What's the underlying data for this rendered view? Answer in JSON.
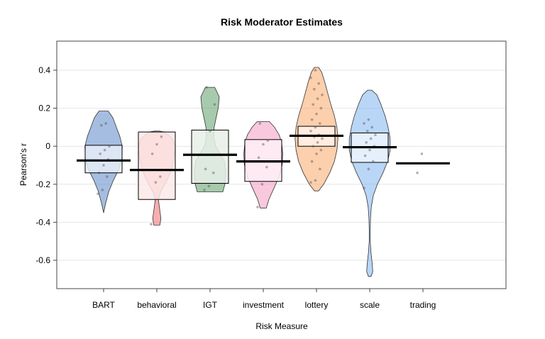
{
  "chart_data": {
    "type": "violin",
    "title": "Risk Moderator Estimates",
    "xlabel": "Risk Measure",
    "ylabel": "Pearson's r",
    "ylim": [
      -0.75,
      0.58
    ],
    "y_ticks": [
      0.4,
      0.2,
      0,
      -0.2,
      -0.4,
      -0.6
    ],
    "y_tick_labels": [
      "0.4",
      "0.2",
      "0",
      "-0.2",
      "-0.4",
      "-0.6"
    ],
    "grid": true,
    "categories": [
      "BART",
      "behavioral",
      "IGT",
      "investment",
      "lottery",
      "scale",
      "trading"
    ],
    "groups": [
      {
        "name": "BART",
        "color": "#5b86c8",
        "mean": -0.075,
        "box": [
          -0.14,
          0.005
        ],
        "min": -0.35,
        "max": 0.185,
        "profile": [
          [
            -0.35,
            0.0
          ],
          [
            -0.3,
            0.08
          ],
          [
            -0.24,
            0.2
          ],
          [
            -0.18,
            0.38
          ],
          [
            -0.12,
            0.6
          ],
          [
            -0.06,
            0.72
          ],
          [
            0.0,
            0.73
          ],
          [
            0.05,
            0.64
          ],
          [
            0.1,
            0.5
          ],
          [
            0.15,
            0.36
          ],
          [
            0.185,
            0.18
          ]
        ],
        "points": [
          -0.25,
          -0.23,
          -0.16,
          -0.14,
          -0.1,
          -0.07,
          -0.04,
          -0.02,
          0.0,
          0.11,
          0.12
        ]
      },
      {
        "name": "behavioral",
        "color": "#f36c6e",
        "mean": -0.125,
        "box": [
          -0.28,
          0.075
        ],
        "min": -0.415,
        "max": 0.08,
        "profile": [
          [
            -0.415,
            0.12
          ],
          [
            -0.38,
            0.16
          ],
          [
            -0.32,
            0.1
          ],
          [
            -0.28,
            0.06
          ],
          [
            -0.24,
            0.15
          ],
          [
            -0.18,
            0.4
          ],
          [
            -0.12,
            0.58
          ],
          [
            -0.06,
            0.68
          ],
          [
            0.0,
            0.72
          ],
          [
            0.04,
            0.62
          ],
          [
            0.075,
            0.3
          ],
          [
            0.08,
            0.1
          ]
        ],
        "points": [
          -0.41,
          -0.19,
          -0.16,
          -0.04,
          0.01,
          0.05
        ]
      },
      {
        "name": "IGT",
        "color": "#5e9e6a",
        "mean": -0.045,
        "box": [
          -0.195,
          0.085
        ],
        "min": -0.24,
        "max": 0.31,
        "profile": [
          [
            -0.24,
            0.5
          ],
          [
            -0.2,
            0.58
          ],
          [
            -0.14,
            0.62
          ],
          [
            -0.08,
            0.56
          ],
          [
            -0.04,
            0.4
          ],
          [
            0.0,
            0.22
          ],
          [
            0.05,
            0.14
          ],
          [
            0.1,
            0.16
          ],
          [
            0.15,
            0.24
          ],
          [
            0.2,
            0.32
          ],
          [
            0.26,
            0.36
          ],
          [
            0.31,
            0.18
          ]
        ],
        "points": [
          -0.23,
          -0.21,
          -0.14,
          -0.12,
          0.08,
          0.22,
          0.31
        ]
      },
      {
        "name": "investment",
        "color": "#f59ac0",
        "mean": -0.08,
        "box": [
          -0.185,
          0.035
        ],
        "min": -0.325,
        "max": 0.13,
        "profile": [
          [
            -0.325,
            0.12
          ],
          [
            -0.28,
            0.22
          ],
          [
            -0.22,
            0.42
          ],
          [
            -0.16,
            0.62
          ],
          [
            -0.1,
            0.74
          ],
          [
            -0.04,
            0.76
          ],
          [
            0.02,
            0.72
          ],
          [
            0.06,
            0.62
          ],
          [
            0.1,
            0.44
          ],
          [
            0.13,
            0.24
          ]
        ],
        "points": [
          -0.32,
          -0.2,
          -0.11,
          -0.06,
          0.01,
          0.03,
          0.12
        ]
      },
      {
        "name": "lottery",
        "color": "#f9a86a",
        "mean": 0.055,
        "box": [
          0.0,
          0.105
        ],
        "min": -0.235,
        "max": 0.415,
        "profile": [
          [
            -0.235,
            0.08
          ],
          [
            -0.2,
            0.28
          ],
          [
            -0.14,
            0.52
          ],
          [
            -0.08,
            0.7
          ],
          [
            -0.02,
            0.8
          ],
          [
            0.04,
            0.84
          ],
          [
            0.1,
            0.8
          ],
          [
            0.16,
            0.7
          ],
          [
            0.22,
            0.56
          ],
          [
            0.28,
            0.44
          ],
          [
            0.34,
            0.32
          ],
          [
            0.39,
            0.2
          ],
          [
            0.415,
            0.08
          ]
        ],
        "points": [
          -0.19,
          -0.18,
          -0.12,
          -0.08,
          -0.04,
          -0.02,
          0.0,
          0.02,
          0.04,
          0.05,
          0.06,
          0.08,
          0.1,
          0.12,
          0.14,
          0.17,
          0.2,
          0.22,
          0.25,
          0.27,
          0.3,
          0.33,
          0.36,
          0.4
        ]
      },
      {
        "name": "scale",
        "color": "#7fb5ef",
        "mean": -0.005,
        "box": [
          -0.085,
          0.07
        ],
        "min": -0.685,
        "max": 0.295,
        "profile": [
          [
            -0.685,
            0.05
          ],
          [
            -0.66,
            0.12
          ],
          [
            -0.62,
            0.1
          ],
          [
            -0.56,
            0.05
          ],
          [
            -0.5,
            0.02
          ],
          [
            -0.44,
            0.02
          ],
          [
            -0.38,
            0.03
          ],
          [
            -0.32,
            0.06
          ],
          [
            -0.26,
            0.14
          ],
          [
            -0.2,
            0.3
          ],
          [
            -0.14,
            0.52
          ],
          [
            -0.08,
            0.7
          ],
          [
            -0.02,
            0.8
          ],
          [
            0.04,
            0.8
          ],
          [
            0.1,
            0.72
          ],
          [
            0.16,
            0.6
          ],
          [
            0.22,
            0.44
          ],
          [
            0.27,
            0.28
          ],
          [
            0.295,
            0.08
          ]
        ],
        "points": [
          -0.22,
          -0.12,
          -0.08,
          -0.05,
          -0.02,
          0.0,
          0.02,
          0.04,
          0.06,
          0.08,
          0.1,
          0.12,
          0.14
        ]
      },
      {
        "name": "trading",
        "color": "#999999",
        "mean": -0.09,
        "box": null,
        "min": -0.14,
        "max": -0.04,
        "profile": [],
        "points": [
          -0.14,
          -0.04
        ]
      }
    ]
  }
}
